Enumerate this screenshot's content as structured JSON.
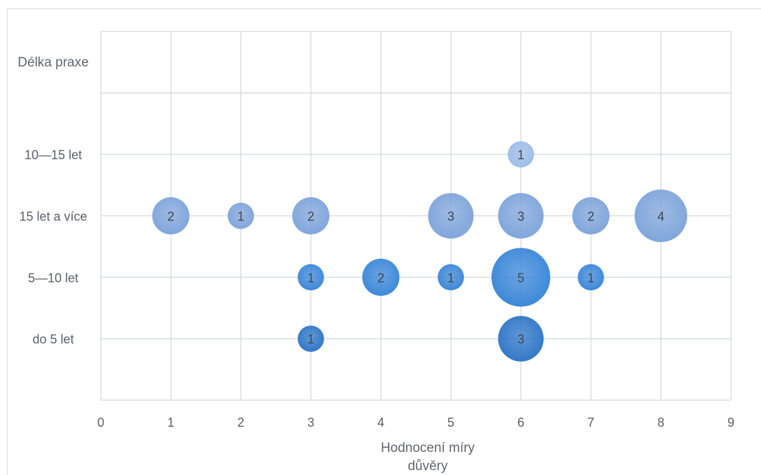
{
  "chart_data": {
    "type": "bubble",
    "xlabel_lines": [
      "Hodnocení míry",
      "důvěry"
    ],
    "y_title": "Délka praxe",
    "xlim": [
      0,
      9
    ],
    "x_ticks": [
      0,
      1,
      2,
      3,
      4,
      5,
      6,
      7,
      8,
      9
    ],
    "y_categories": [
      {
        "key": "do5",
        "label": "do 5 let",
        "pos": 1
      },
      {
        "key": "5_10",
        "label": "5—10 let",
        "pos": 2
      },
      {
        "key": "15plus",
        "label": "15 let a více",
        "pos": 3
      },
      {
        "key": "10_15",
        "label": "10—15 let",
        "pos": 4
      }
    ],
    "ylim": [
      0,
      6
    ],
    "grid": true,
    "legend": "none",
    "colors": {
      "do5": "#2e75c6",
      "5_10": "#3a86d8",
      "15plus": "#7ea4da",
      "10_15": "#9cbce6",
      "grid": "#d9dde4"
    },
    "points": [
      {
        "category": "do5",
        "x": 3,
        "value": 1
      },
      {
        "category": "do5",
        "x": 6,
        "value": 3
      },
      {
        "category": "5_10",
        "x": 3,
        "value": 1
      },
      {
        "category": "5_10",
        "x": 4,
        "value": 2
      },
      {
        "category": "5_10",
        "x": 5,
        "value": 1
      },
      {
        "category": "5_10",
        "x": 6,
        "value": 5
      },
      {
        "category": "5_10",
        "x": 7,
        "value": 1
      },
      {
        "category": "15plus",
        "x": 1,
        "value": 2
      },
      {
        "category": "15plus",
        "x": 2,
        "value": 1
      },
      {
        "category": "15plus",
        "x": 3,
        "value": 2
      },
      {
        "category": "15plus",
        "x": 5,
        "value": 3
      },
      {
        "category": "15plus",
        "x": 6,
        "value": 3
      },
      {
        "category": "15plus",
        "x": 7,
        "value": 2
      },
      {
        "category": "15plus",
        "x": 8,
        "value": 4
      },
      {
        "category": "10_15",
        "x": 6,
        "value": 1
      }
    ]
  }
}
